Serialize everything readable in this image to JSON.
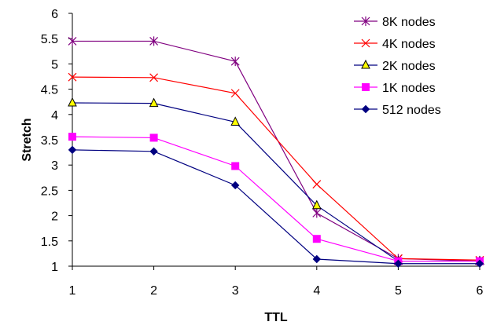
{
  "chart_data": {
    "type": "line",
    "title": "",
    "xlabel": "TTL",
    "ylabel": "Stretch",
    "x": [
      1,
      2,
      3,
      4,
      5,
      6
    ],
    "xlim": [
      1,
      6
    ],
    "ylim": [
      1,
      6
    ],
    "y_ticks": [
      "1",
      "1.5",
      "2",
      "2.5",
      "3",
      "3.5",
      "4",
      "4.5",
      "5",
      "5.5",
      "6"
    ],
    "x_ticks": [
      "1",
      "2",
      "3",
      "4",
      "5",
      "6"
    ],
    "grid": false,
    "legend_position": "top-right",
    "series": [
      {
        "name": "8K nodes",
        "color": "#800080",
        "marker": "star",
        "values": [
          5.45,
          5.45,
          5.05,
          2.05,
          1.15,
          1.1
        ]
      },
      {
        "name": "4K nodes",
        "color": "#ff0000",
        "marker": "x",
        "values": [
          4.74,
          4.73,
          4.42,
          2.62,
          1.15,
          1.12
        ]
      },
      {
        "name": "2K nodes",
        "color": "#000080",
        "marker": "triangle",
        "marker_fill": "#ffff00",
        "values": [
          4.23,
          4.22,
          3.85,
          2.2,
          1.1,
          1.1
        ]
      },
      {
        "name": "1K nodes",
        "color": "#ff00ff",
        "marker": "square",
        "values": [
          3.56,
          3.54,
          2.98,
          1.54,
          1.1,
          1.1
        ]
      },
      {
        "name": "512 nodes",
        "color": "#000080",
        "marker": "diamond",
        "values": [
          3.3,
          3.27,
          2.6,
          1.14,
          1.05,
          1.05
        ]
      }
    ]
  }
}
